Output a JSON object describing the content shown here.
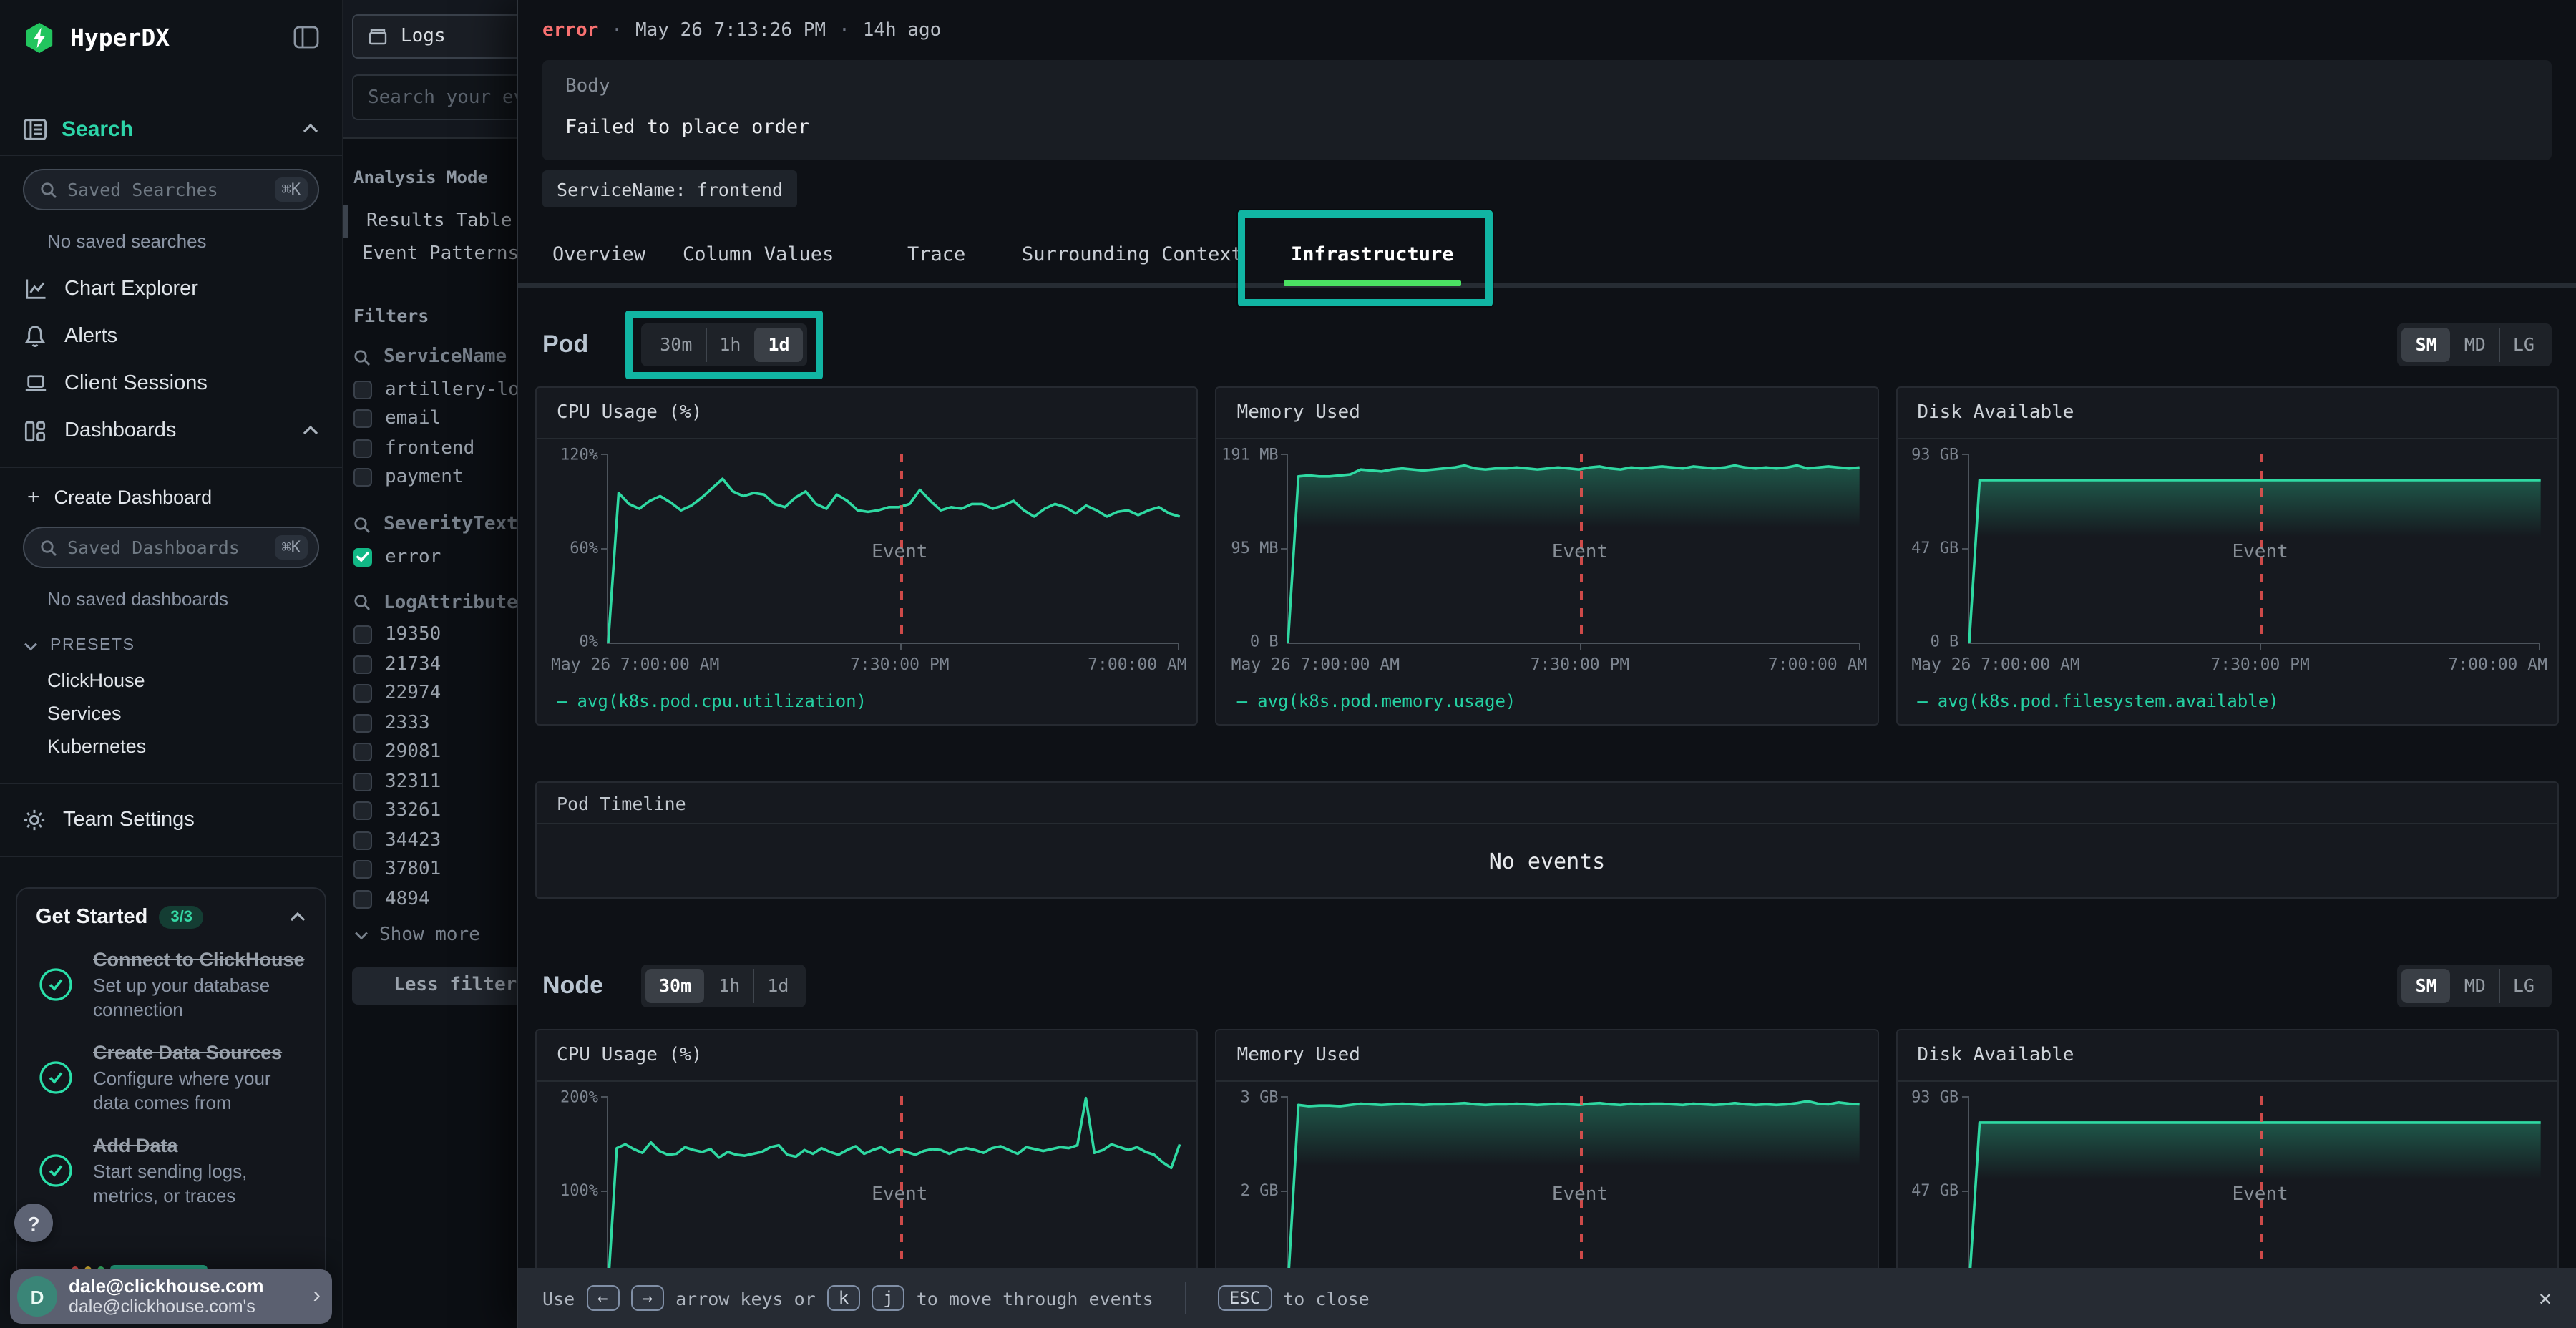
{
  "colors": {
    "accent": "#2dd4a8",
    "chart_line": "#2fd9a2",
    "event_line": "#ef5350",
    "severity_error": "#f87171",
    "annotation": "#11b5a3",
    "tab_underline": "#4be162",
    "logo_green": "#22c55e",
    "checkbox_checked": "#12b886"
  },
  "sidebar": {
    "brand": "HyperDX",
    "search_label": "Search",
    "saved_searches": {
      "placeholder": "Saved Searches",
      "shortcut": "⌘K",
      "empty": "No saved searches"
    },
    "nav": [
      {
        "label": "Chart Explorer"
      },
      {
        "label": "Alerts"
      },
      {
        "label": "Client Sessions"
      },
      {
        "label": "Dashboards"
      }
    ],
    "create_dashboard": "Create Dashboard",
    "saved_dashboards": {
      "placeholder": "Saved Dashboards",
      "shortcut": "⌘K",
      "empty": "No saved dashboards"
    },
    "presets": {
      "label": "PRESETS",
      "items": [
        "ClickHouse",
        "Services",
        "Kubernetes"
      ]
    },
    "team_settings": "Team Settings",
    "get_started": {
      "title": "Get Started",
      "badge": "3/3",
      "items": [
        {
          "title": "Connect to ClickHouse",
          "desc": "Set up your database connection"
        },
        {
          "title": "Create Data Sources",
          "desc": "Configure where your data comes from"
        },
        {
          "title": "Add Data",
          "desc": "Start sending logs, metrics, or traces"
        }
      ]
    },
    "help": "?",
    "user": {
      "initial": "D",
      "name": "dale@clickhouse.com",
      "org": "dale@clickhouse.com's"
    }
  },
  "search_panel": {
    "source": "Logs",
    "search_placeholder": "Search your events",
    "analysis_mode": {
      "label": "Analysis Mode",
      "options": [
        {
          "label": "Results Table",
          "active": false
        },
        {
          "label": "Event Patterns",
          "active": true
        }
      ]
    },
    "filters": {
      "title": "Filters",
      "service": {
        "name": "ServiceName",
        "items": [
          "artillery-loa",
          "email",
          "frontend",
          "payment"
        ]
      },
      "severity": {
        "name": "SeverityText",
        "items": [
          "error"
        ]
      },
      "log_attributes": {
        "name": "LogAttributes",
        "items": [
          "19350",
          "21734",
          "22974",
          "2333",
          "29081",
          "32311",
          "33261",
          "34423",
          "37801",
          "4894"
        ]
      },
      "show_more": "Show more",
      "less_filters": "Less filters"
    }
  },
  "event_panel": {
    "header": {
      "severity": "error",
      "sep": "·",
      "timestamp": "May 26 7:13:26 PM",
      "relative": "14h ago"
    },
    "body": {
      "label": "Body",
      "value": "Failed to place order"
    },
    "tags": [
      {
        "label": "ServiceName: frontend"
      }
    ],
    "tabs": [
      {
        "label": "Overview",
        "active": false
      },
      {
        "label": "Column Values",
        "active": false
      },
      {
        "label": "Trace",
        "active": false
      },
      {
        "label": "Surrounding Context",
        "active": false
      },
      {
        "label": "Infrastructure",
        "active": true
      }
    ],
    "pod": {
      "title": "Pod",
      "ranges": [
        {
          "label": "30m",
          "active": false
        },
        {
          "label": "1h",
          "active": false
        },
        {
          "label": "1d",
          "active": true
        }
      ],
      "sizes": [
        {
          "label": "SM",
          "active": true
        },
        {
          "label": "MD",
          "active": false
        },
        {
          "label": "LG",
          "active": false
        }
      ]
    },
    "timeline": {
      "title": "Pod Timeline",
      "empty": "No events"
    },
    "node": {
      "title": "Node",
      "ranges": [
        {
          "label": "30m",
          "active": true
        },
        {
          "label": "1h",
          "active": false
        },
        {
          "label": "1d",
          "active": false
        }
      ],
      "sizes": [
        {
          "label": "SM",
          "active": true
        },
        {
          "label": "MD",
          "active": false
        },
        {
          "label": "LG",
          "active": false
        }
      ]
    },
    "footer": {
      "use": "Use",
      "key_left": "←",
      "key_right": "→",
      "arrows_text": "arrow keys or",
      "key_k": "k",
      "key_j": "j",
      "move_text": "to move through events",
      "key_esc": "ESC",
      "close_text": "to close",
      "close_icon": "✕"
    }
  },
  "chart_data": {
    "pod_cpu": {
      "type": "line",
      "title": "CPU Usage (%)",
      "legend": "avg(k8s.pod.cpu.utilization)",
      "y_ticks": [
        "120%",
        "60%",
        "0%"
      ],
      "y_max": 120,
      "x_ticks": [
        "May 26 7:00:00 AM",
        "7:30:00 PM",
        "7:00:00 AM"
      ],
      "event_label": "Event",
      "event_x": 0.51,
      "fill": false,
      "color": "#2fd9a2",
      "values": [
        0,
        95,
        88,
        85,
        90,
        93,
        89,
        84,
        87,
        92,
        98,
        104,
        96,
        93,
        95,
        94,
        88,
        86,
        92,
        96,
        88,
        85,
        94,
        90,
        84,
        83,
        84,
        86,
        86,
        88,
        97,
        90,
        84,
        86,
        85,
        88,
        88,
        85,
        87,
        90,
        84,
        80,
        85,
        88,
        86,
        82,
        87,
        84,
        80,
        83,
        84,
        81,
        84,
        86,
        82,
        80
      ]
    },
    "pod_memory": {
      "type": "line",
      "title": "Memory Used",
      "legend": "avg(k8s.pod.memory.usage)",
      "y_ticks": [
        "191 MB",
        "95 MB",
        "0 B"
      ],
      "y_max": 191,
      "x_ticks": [
        "May 26 7:00:00 AM",
        "7:30:00 PM",
        "7:00:00 AM"
      ],
      "event_label": "Event",
      "event_x": 0.51,
      "fill": true,
      "color": "#2fd9a2",
      "values": [
        0,
        168,
        169,
        168,
        168,
        169,
        170,
        175,
        174,
        173,
        175,
        176,
        175,
        174,
        175,
        176,
        177,
        179,
        176,
        175,
        176,
        176,
        177,
        176,
        175,
        176,
        177,
        176,
        175,
        177,
        178,
        176,
        175,
        177,
        176,
        177,
        178,
        177,
        176,
        178,
        177,
        176,
        177,
        179,
        177,
        176,
        177,
        176,
        177,
        179,
        176,
        177,
        178,
        177,
        176,
        177
      ]
    },
    "pod_disk": {
      "type": "line",
      "title": "Disk Available",
      "legend": "avg(k8s.pod.filesystem.available)",
      "y_ticks": [
        "93 GB",
        "47 GB",
        "0 B"
      ],
      "y_max": 93,
      "x_ticks": [
        "May 26 7:00:00 AM",
        "7:30:00 PM",
        "7:00:00 AM"
      ],
      "event_label": "Event",
      "event_x": 0.51,
      "fill": true,
      "color": "#2fd9a2",
      "values": [
        0,
        80,
        80,
        80,
        80,
        80,
        80,
        80,
        80,
        80,
        80,
        80,
        80,
        80,
        80,
        80,
        80,
        80,
        80,
        80,
        80,
        80,
        80,
        80,
        80,
        80,
        80,
        80,
        80,
        80,
        80,
        80,
        80,
        80,
        80,
        80,
        80,
        80,
        80,
        80,
        80,
        80,
        80,
        80,
        80,
        80,
        80,
        80,
        80,
        80,
        80,
        80,
        80,
        80,
        80,
        80
      ]
    },
    "node_cpu": {
      "type": "line",
      "title": "CPU Usage (%)",
      "y_ticks": [
        "200%",
        "100%"
      ],
      "y_max": 200,
      "event_label": "Event",
      "event_x": 0.51,
      "fill": false,
      "color": "#2fd9a2",
      "values": [
        0,
        145,
        149,
        144,
        140,
        151,
        142,
        138,
        139,
        146,
        143,
        141,
        144,
        135,
        141,
        138,
        137,
        139,
        141,
        146,
        148,
        138,
        136,
        143,
        139,
        145,
        141,
        138,
        143,
        147,
        139,
        143,
        146,
        140,
        144,
        141,
        138,
        142,
        144,
        143,
        139,
        143,
        145,
        143,
        140,
        145,
        147,
        143,
        139,
        146,
        144,
        142,
        144,
        146,
        145,
        148,
        198,
        140,
        143,
        149,
        146,
        143,
        146,
        141,
        138,
        130,
        124,
        149
      ]
    },
    "node_memory": {
      "type": "line",
      "title": "Memory Used",
      "y_ticks": [
        "3 GB",
        "2 GB"
      ],
      "y_max": 3,
      "event_label": "Event",
      "event_x": 0.51,
      "fill": true,
      "color": "#2fd9a2",
      "values": [
        0,
        2.86,
        2.84,
        2.85,
        2.85,
        2.84,
        2.86,
        2.88,
        2.87,
        2.86,
        2.87,
        2.88,
        2.87,
        2.86,
        2.87,
        2.87,
        2.88,
        2.89,
        2.87,
        2.86,
        2.87,
        2.87,
        2.88,
        2.87,
        2.86,
        2.87,
        2.88,
        2.87,
        2.86,
        2.88,
        2.89,
        2.87,
        2.86,
        2.88,
        2.87,
        2.88,
        2.88,
        2.87,
        2.86,
        2.88,
        2.87,
        2.86,
        2.87,
        2.89,
        2.87,
        2.86,
        2.87,
        2.86,
        2.87,
        2.89,
        2.92,
        2.88,
        2.87,
        2.9,
        2.88,
        2.87
      ]
    },
    "node_disk": {
      "type": "line",
      "title": "Disk Available",
      "y_ticks": [
        "93 GB",
        "47 GB"
      ],
      "y_max": 93,
      "event_label": "Event",
      "event_x": 0.51,
      "fill": true,
      "color": "#2fd9a2",
      "values": [
        0,
        80,
        80,
        80,
        80,
        80,
        80,
        80,
        80,
        80,
        80,
        80,
        80,
        80,
        80,
        80,
        80,
        80,
        80,
        80,
        80,
        80,
        80,
        80,
        80,
        80,
        80,
        80,
        80,
        80,
        80,
        80,
        80,
        80,
        80,
        80,
        80,
        80,
        80,
        80,
        80,
        80,
        80,
        80,
        80,
        80,
        80,
        80,
        80,
        80,
        80,
        80,
        80,
        80,
        80,
        80
      ]
    }
  }
}
